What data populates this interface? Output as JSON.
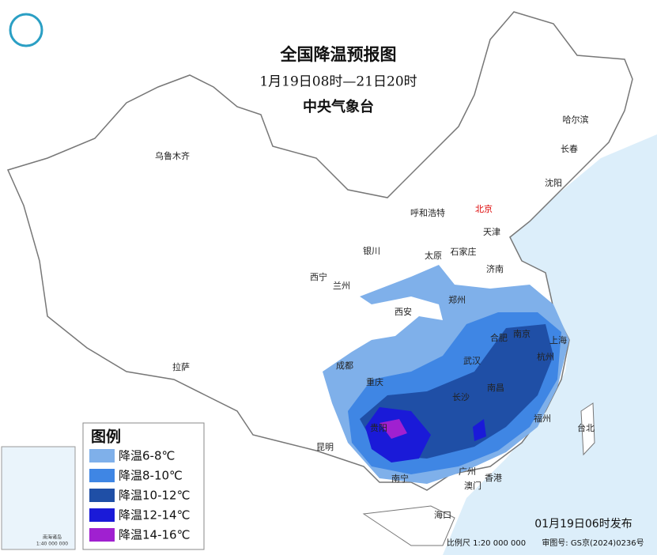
{
  "header": {
    "title": "全国降温预报图",
    "subtitle": "1月19日08时—21日20时",
    "issuer": "中央气象台"
  },
  "cities": [
    "乌鲁木齐",
    "哈尔滨",
    "长春",
    "沈阳",
    "呼和浩特",
    "北京",
    "天津",
    "银川",
    "太原",
    "石家庄",
    "济南",
    "西宁",
    "兰州",
    "西安",
    "郑州",
    "合肥",
    "南京",
    "上海",
    "武汉",
    "杭州",
    "成都",
    "重庆",
    "长沙",
    "南昌",
    "福州",
    "台北",
    "贵阳",
    "昆明",
    "拉萨",
    "南宁",
    "广州",
    "澳门",
    "香港",
    "海口"
  ],
  "legend": {
    "title": "图例",
    "items": [
      {
        "label": "降温6-8℃",
        "color": "#7fb0ea"
      },
      {
        "label": "降温8-10℃",
        "color": "#3f86e4"
      },
      {
        "label": "降温10-12℃",
        "color": "#1f4fa6"
      },
      {
        "label": "降温12-14℃",
        "color": "#1a1ad8"
      },
      {
        "label": "降温14-16℃",
        "color": "#a020d0"
      }
    ]
  },
  "inset": {
    "title": "南海诸岛",
    "scale": "1:40 000 000"
  },
  "footer": {
    "issued": "01月19日06时发布",
    "scale": "比例尺 1:20 000 000",
    "approval": "审图号: GS京(2024)0236号"
  }
}
